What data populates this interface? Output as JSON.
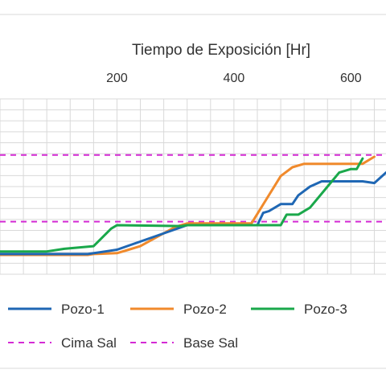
{
  "chart_data": {
    "type": "line",
    "xlabel": "Tiempo de Exposición [Hr]",
    "ylabel": "",
    "x_ticks": [
      "200",
      "400",
      "600"
    ],
    "xlim": [
      0,
      660
    ],
    "ylim": [
      0,
      10
    ],
    "grid": true,
    "legend_position": "bottom",
    "series": [
      {
        "name": "Pozo-1",
        "color": "#1f67b4",
        "style": "solid",
        "x": [
          0,
          110,
          130,
          150,
          180,
          200,
          320,
          440,
          450,
          460,
          480,
          500,
          510,
          530,
          550,
          590,
          620,
          640,
          660
        ],
        "y": [
          1.15,
          1.15,
          1.15,
          1.15,
          1.3,
          1.4,
          2.8,
          2.8,
          3.5,
          3.6,
          4.0,
          4.0,
          4.5,
          5.0,
          5.3,
          5.3,
          5.3,
          5.2,
          5.8
        ]
      },
      {
        "name": "Pozo-2",
        "color": "#f08a2c",
        "style": "solid",
        "x": [
          0,
          150,
          160,
          200,
          220,
          240,
          300,
          310,
          320,
          430,
          480,
          500,
          520,
          560,
          610,
          620,
          640
        ],
        "y": [
          1.1,
          1.1,
          1.15,
          1.2,
          1.4,
          1.6,
          2.7,
          2.8,
          2.9,
          2.9,
          5.6,
          6.1,
          6.3,
          6.3,
          6.3,
          6.3,
          6.7
        ]
      },
      {
        "name": "Pozo-3",
        "color": "#1aa84b",
        "style": "solid",
        "x": [
          0,
          80,
          110,
          160,
          190,
          200,
          310,
          320,
          480,
          490,
          510,
          530,
          560,
          580,
          600,
          610,
          620
        ],
        "y": [
          1.3,
          1.3,
          1.45,
          1.6,
          2.6,
          2.8,
          2.75,
          2.8,
          2.8,
          3.4,
          3.4,
          3.8,
          5.0,
          5.8,
          6.0,
          6.0,
          6.6
        ]
      },
      {
        "name": "Cima Sal",
        "color": "#d42ad4",
        "style": "dashed",
        "x": [
          0,
          660
        ],
        "y": [
          6.8,
          6.8
        ]
      },
      {
        "name": "Base Sal",
        "color": "#d42ad4",
        "style": "dashed",
        "x": [
          0,
          660
        ],
        "y": [
          3.0,
          3.0
        ]
      }
    ]
  }
}
